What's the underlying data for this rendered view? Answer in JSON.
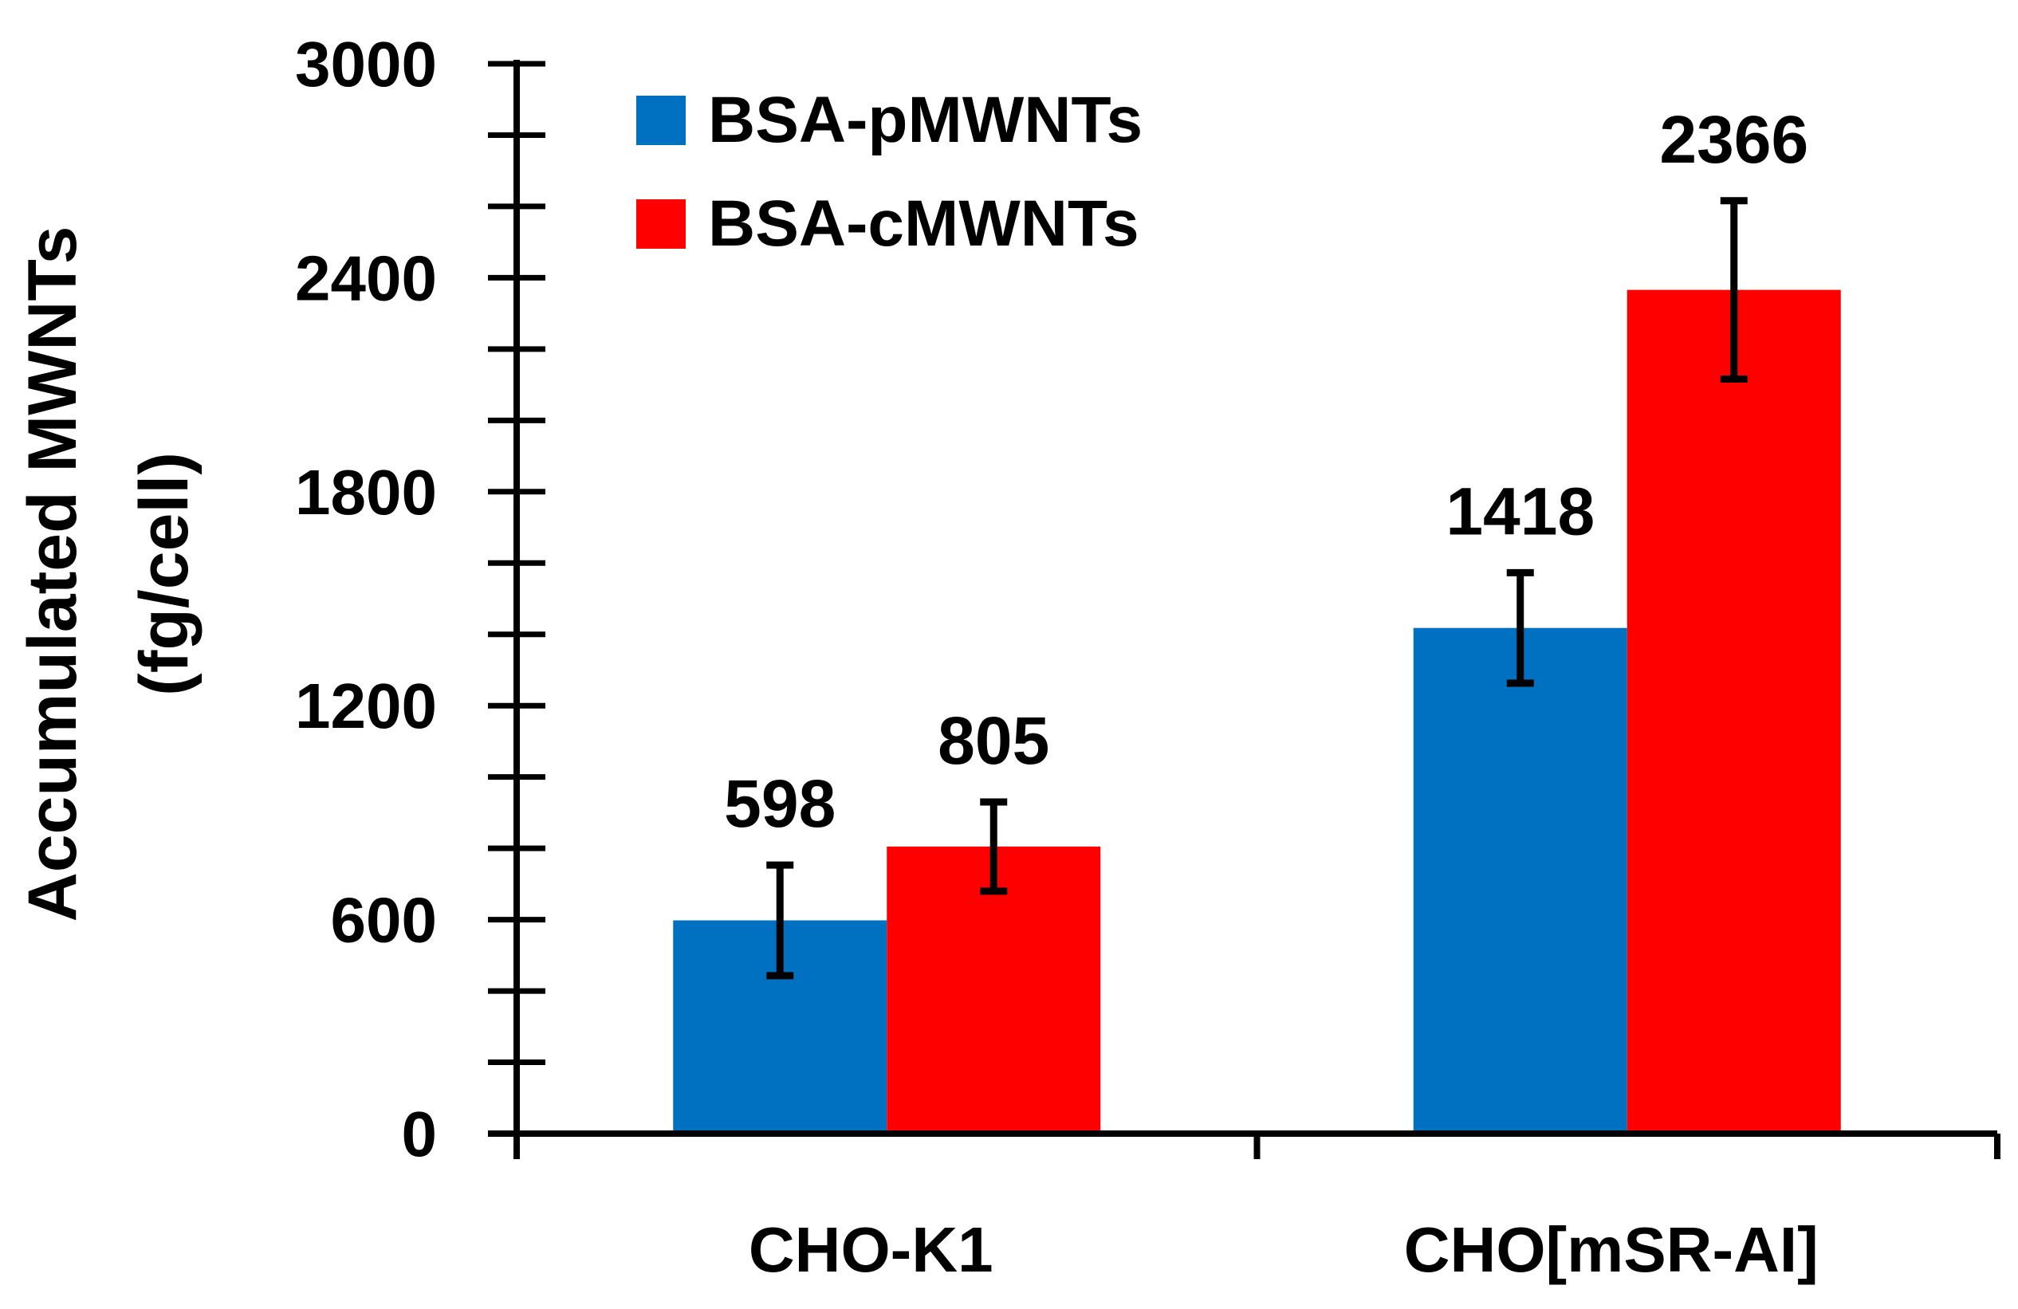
{
  "chart_data": {
    "type": "bar",
    "title": "",
    "xlabel": "",
    "ylabel": "Accumulated MWNTs",
    "ylabel_unit": "(fg/cell)",
    "ylim": [
      0,
      3000
    ],
    "yticks": [
      0,
      600,
      1200,
      1800,
      2400,
      3000
    ],
    "ytick_labels": [
      "0",
      "600",
      "1200",
      "1800",
      "2400",
      "3000"
    ],
    "minor_tick_step": 200,
    "categories": [
      "CHO-K1",
      "CHO[mSR-AI]"
    ],
    "series": [
      {
        "name": "BSA-pMWNTs",
        "color": "#0070C0",
        "values": [
          598,
          1418
        ],
        "errors": [
          155,
          155
        ],
        "labels": [
          "598",
          "1418"
        ]
      },
      {
        "name": "BSA-cMWNTs",
        "color": "#FF0000",
        "values": [
          805,
          2366
        ],
        "errors": [
          125,
          250
        ],
        "labels": [
          "805",
          "2366"
        ]
      }
    ],
    "legend_position": "top-left",
    "grid": false
  }
}
